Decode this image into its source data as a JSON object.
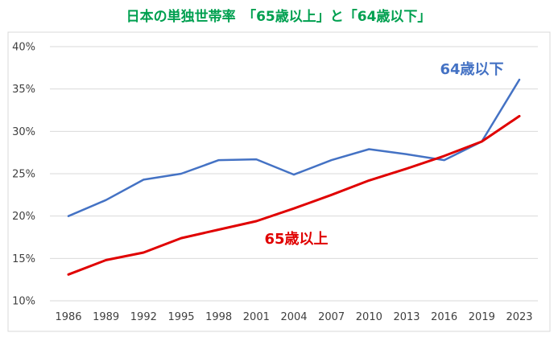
{
  "chart_data": {
    "type": "line",
    "title": "日本の単独世帯率　「65歳以上」と「64歳以下」",
    "xlabel": "",
    "ylabel": "",
    "categories": [
      "1986",
      "1989",
      "1992",
      "1995",
      "1998",
      "2001",
      "2004",
      "2007",
      "2010",
      "2013",
      "2016",
      "2019",
      "2023"
    ],
    "ylim": [
      10,
      40
    ],
    "yticks": [
      "10%",
      "15%",
      "20%",
      "25%",
      "30%",
      "35%",
      "40%"
    ],
    "ytick_values": [
      10,
      15,
      20,
      25,
      30,
      35,
      40
    ],
    "grid": true,
    "series": [
      {
        "name": "64歳以下",
        "color": "#4472C4",
        "values": [
          20.0,
          21.9,
          24.3,
          25.0,
          26.6,
          26.7,
          24.9,
          26.6,
          27.9,
          27.3,
          26.6,
          28.8,
          36.1
        ]
      },
      {
        "name": "65歳以上",
        "color": "#E00000",
        "values": [
          13.1,
          14.8,
          15.7,
          17.4,
          18.4,
          19.4,
          20.9,
          22.5,
          24.2,
          25.6,
          27.1,
          28.8,
          31.8
        ]
      }
    ]
  },
  "colors": {
    "title": "#00A050",
    "axis_text": "#404040",
    "grid": "#D9D9D9",
    "plot_border": "#D9D9D9"
  }
}
